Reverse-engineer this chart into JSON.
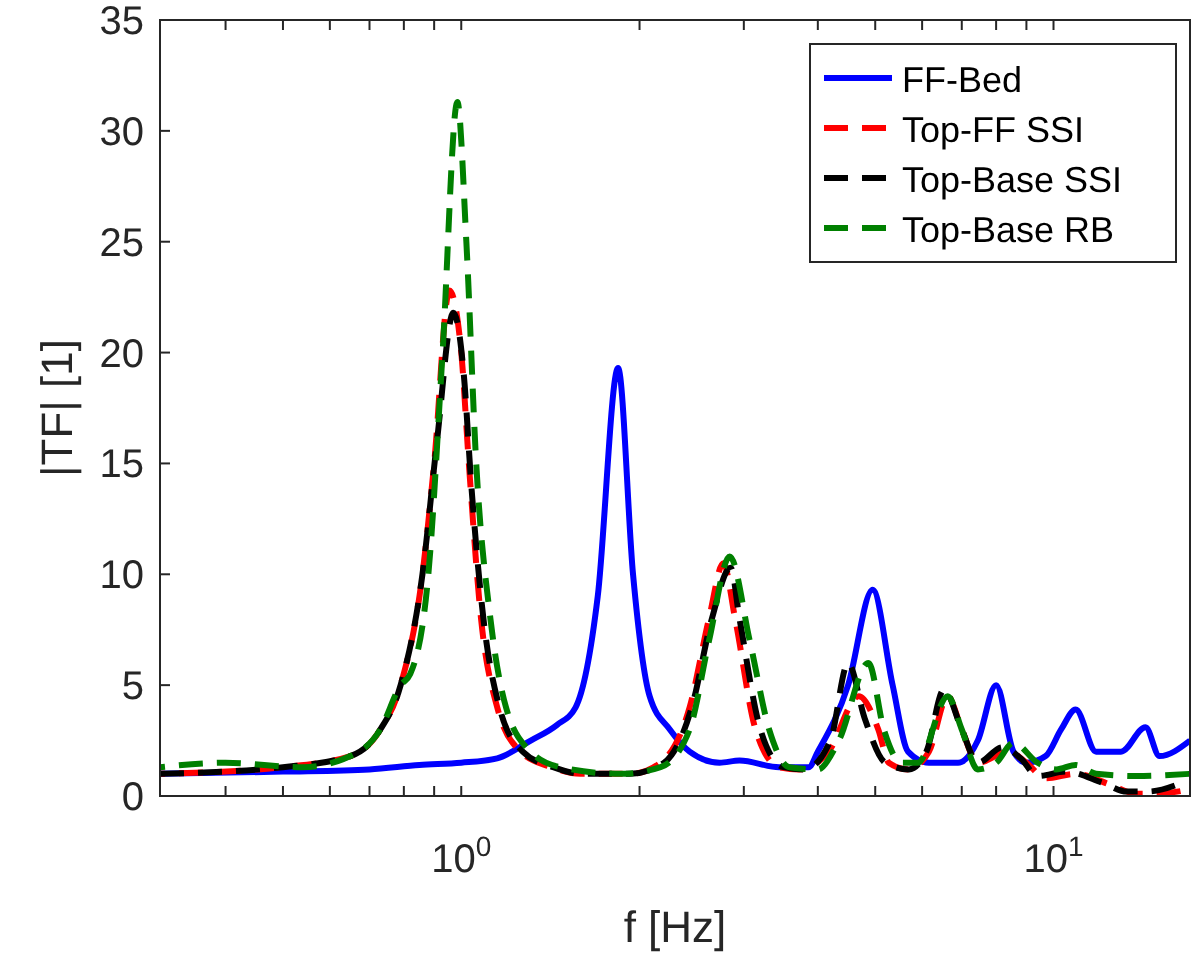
{
  "chart_data": {
    "type": "line",
    "xlabel": "f [Hz]",
    "ylabel": "|TF| [1]",
    "log": "x",
    "xlim": [
      0.31,
      17
    ],
    "ylim": [
      0,
      35
    ],
    "xticks": [
      {
        "value": 0.4,
        "label": null
      },
      {
        "value": 0.5,
        "label": null
      },
      {
        "value": 0.6,
        "label": null
      },
      {
        "value": 0.7,
        "label": null
      },
      {
        "value": 0.8,
        "label": null
      },
      {
        "value": 0.9,
        "label": null
      },
      {
        "value": 1,
        "label": "10$^{0}$"
      },
      {
        "value": 2,
        "label": null
      },
      {
        "value": 3,
        "label": null
      },
      {
        "value": 4,
        "label": null
      },
      {
        "value": 5,
        "label": null
      },
      {
        "value": 6,
        "label": null
      },
      {
        "value": 7,
        "label": null
      },
      {
        "value": 8,
        "label": null
      },
      {
        "value": 9,
        "label": null
      },
      {
        "value": 10,
        "label": "10$^{1}$"
      }
    ],
    "yticks": [
      0,
      5,
      10,
      15,
      20,
      25,
      30,
      35
    ],
    "grid": false,
    "legend": "top right",
    "series": [
      {
        "name": "FF-Bed",
        "color": "#0000ff",
        "line_style": "solid",
        "x": [
          0.31,
          0.5,
          0.7,
          0.85,
          1,
          1.15,
          1.31,
          1.45,
          1.56,
          1.7,
          1.84,
          1.95,
          2.08,
          2.25,
          2.43,
          2.73,
          2.95,
          3.44,
          3.86,
          4.0,
          4.5,
          4.95,
          5.35,
          5.68,
          6.16,
          6.9,
          7.45,
          8.0,
          8.56,
          9.0,
          9.7,
          10.3,
          10.9,
          11.8,
          13.0,
          14.3,
          15.1,
          17
        ],
        "values": [
          1.0,
          1.1,
          1.2,
          1.4,
          1.5,
          1.7,
          2.5,
          3.2,
          4.0,
          9,
          19.3,
          10,
          4.5,
          3,
          2,
          1.5,
          1.6,
          1.3,
          1.3,
          2,
          5,
          9.3,
          5,
          2,
          1.5,
          1.5,
          2.5,
          5,
          2,
          1.5,
          1.8,
          3,
          3.9,
          2,
          2,
          3.1,
          1.8,
          2.5
        ]
      },
      {
        "name": "Top-FF SSI",
        "color": "#ff0000",
        "line_style": "dashed",
        "x": [
          0.31,
          0.5,
          0.65,
          0.73,
          0.79,
          0.86,
          0.9,
          0.955,
          1.0,
          1.03,
          1.08,
          1.15,
          1.26,
          1.42,
          1.59,
          1.93,
          2.17,
          2.43,
          2.62,
          2.77,
          2.9,
          3.14,
          3.44,
          3.72,
          4.17,
          4.69,
          5.06,
          5.27,
          5.68,
          6.16,
          6.63,
          7.0,
          7.45,
          8.4,
          9.0,
          9.7,
          10.9,
          12.5,
          13.8,
          14.9,
          17
        ],
        "values": [
          1.0,
          1.3,
          1.8,
          3,
          5,
          10,
          15,
          22.8,
          20,
          15,
          8,
          4,
          2,
          1.3,
          1.0,
          1.0,
          1.5,
          4,
          8,
          10.5,
          8,
          3,
          1.3,
          1.2,
          2,
          4.5,
          3,
          1.5,
          1.2,
          2,
          4.5,
          3,
          1.5,
          2,
          1.5,
          0.8,
          1.0,
          0.5,
          0.1,
          0.1,
          0.3
        ]
      },
      {
        "name": "Top-Base SSI",
        "color": "#000000",
        "line_style": "dashed",
        "x": [
          0.31,
          0.5,
          0.65,
          0.73,
          0.79,
          0.86,
          0.91,
          0.97,
          1.01,
          1.04,
          1.09,
          1.16,
          1.27,
          1.43,
          1.6,
          1.93,
          2.2,
          2.45,
          2.65,
          2.85,
          2.95,
          3.2,
          3.5,
          3.8,
          4.2,
          4.5,
          4.8,
          5.2,
          5.7,
          6.1,
          6.53,
          7.0,
          7.45,
          8.2,
          8.8,
          9.4,
          10.5,
          12.1,
          13.3,
          14.4,
          16.5
        ],
        "values": [
          1.0,
          1.3,
          1.8,
          3,
          5,
          10,
          16,
          21.8,
          19,
          14,
          8,
          4,
          2,
          1.3,
          1.0,
          1.0,
          1.5,
          4,
          8,
          10.3,
          8,
          3,
          1.3,
          1.2,
          2.5,
          6,
          3.5,
          1.5,
          1.2,
          2,
          4.8,
          3,
          1.5,
          2.2,
          1.7,
          0.9,
          1.1,
          0.6,
          0.2,
          0.2,
          0.6
        ]
      },
      {
        "name": "Top-Base RB",
        "color": "#008000",
        "line_style": "dashed",
        "x": [
          0.31,
          0.4,
          0.54,
          0.65,
          0.73,
          0.79,
          0.82,
          0.88,
          0.93,
          0.985,
          1.02,
          1.06,
          1.12,
          1.19,
          1.31,
          1.47,
          1.86,
          2.17,
          2.43,
          2.62,
          2.84,
          3.07,
          3.31,
          3.58,
          4.0,
          4.34,
          4.87,
          5.17,
          5.54,
          5.9,
          6.63,
          7.0,
          7.45,
          8.0,
          8.56,
          9.4,
          10.1,
          10.9,
          11.8,
          13.8,
          17
        ],
        "values": [
          1.3,
          1.5,
          1.3,
          1.8,
          3,
          5,
          5.5,
          10,
          20,
          31.3,
          25,
          15,
          8,
          4,
          2,
          1.3,
          1.0,
          1.3,
          3,
          7,
          10.8,
          7,
          3,
          1.3,
          1.2,
          2.5,
          6,
          3,
          1.5,
          1.5,
          4.5,
          3,
          1.2,
          1.5,
          2.4,
          1.5,
          1.2,
          1.4,
          1.0,
          0.9,
          1.0
        ]
      }
    ]
  }
}
